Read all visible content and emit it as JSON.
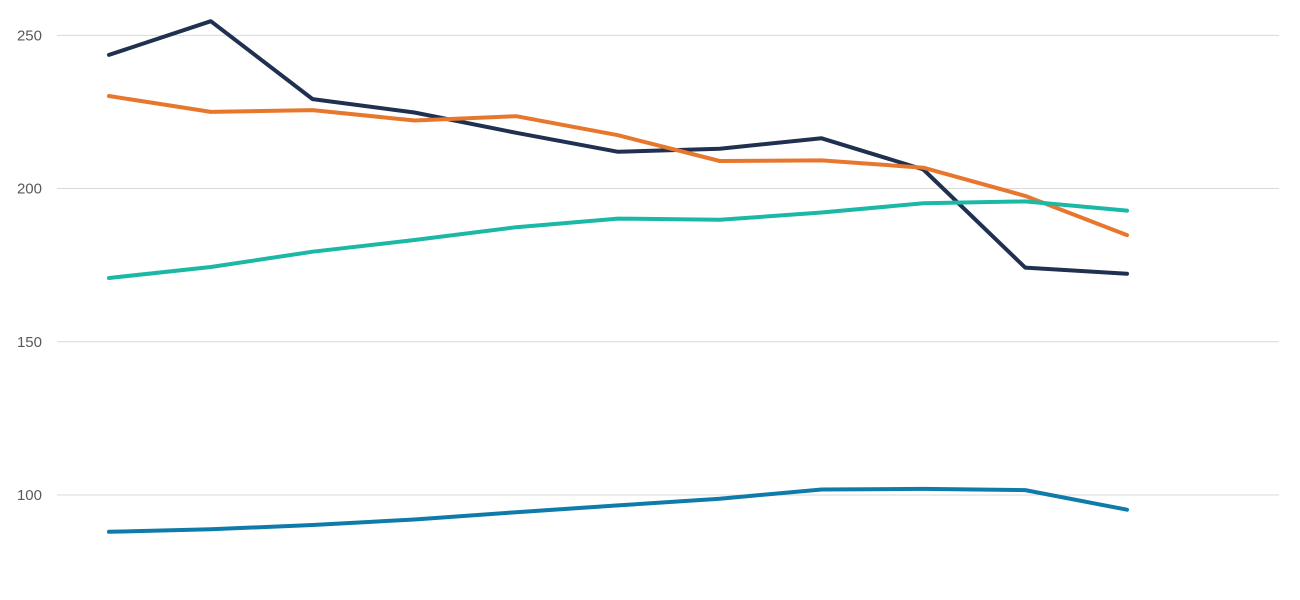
{
  "chart_data": {
    "type": "line",
    "title": "",
    "xlabel": "",
    "ylabel": "",
    "x": [
      1,
      2,
      3,
      4,
      5,
      6,
      7,
      8,
      9,
      10,
      11
    ],
    "ylim": [
      69,
      255
    ],
    "yticks": [
      100,
      150,
      200,
      250
    ],
    "grid": true,
    "legend": "none",
    "series": [
      {
        "color": "#1f3050",
        "values": [
          243.6,
          254.6,
          229.2,
          224.8,
          218.2,
          212.0,
          213.0,
          216.4,
          206.2,
          174.2,
          172.2
        ]
      },
      {
        "color": "#e8772e",
        "values": [
          230.2,
          225.0,
          225.6,
          222.2,
          223.6,
          217.4,
          209.0,
          209.2,
          206.8,
          197.6,
          184.8
        ]
      },
      {
        "color": "#1bb8a6",
        "values": [
          170.8,
          174.4,
          179.4,
          183.2,
          187.4,
          190.2,
          189.8,
          192.2,
          195.2,
          195.8,
          192.8
        ]
      },
      {
        "color": "#0f7bab",
        "values": [
          88.0,
          88.8,
          90.2,
          92.0,
          94.4,
          96.6,
          98.8,
          101.8,
          102.0,
          101.6,
          95.2
        ]
      }
    ]
  }
}
